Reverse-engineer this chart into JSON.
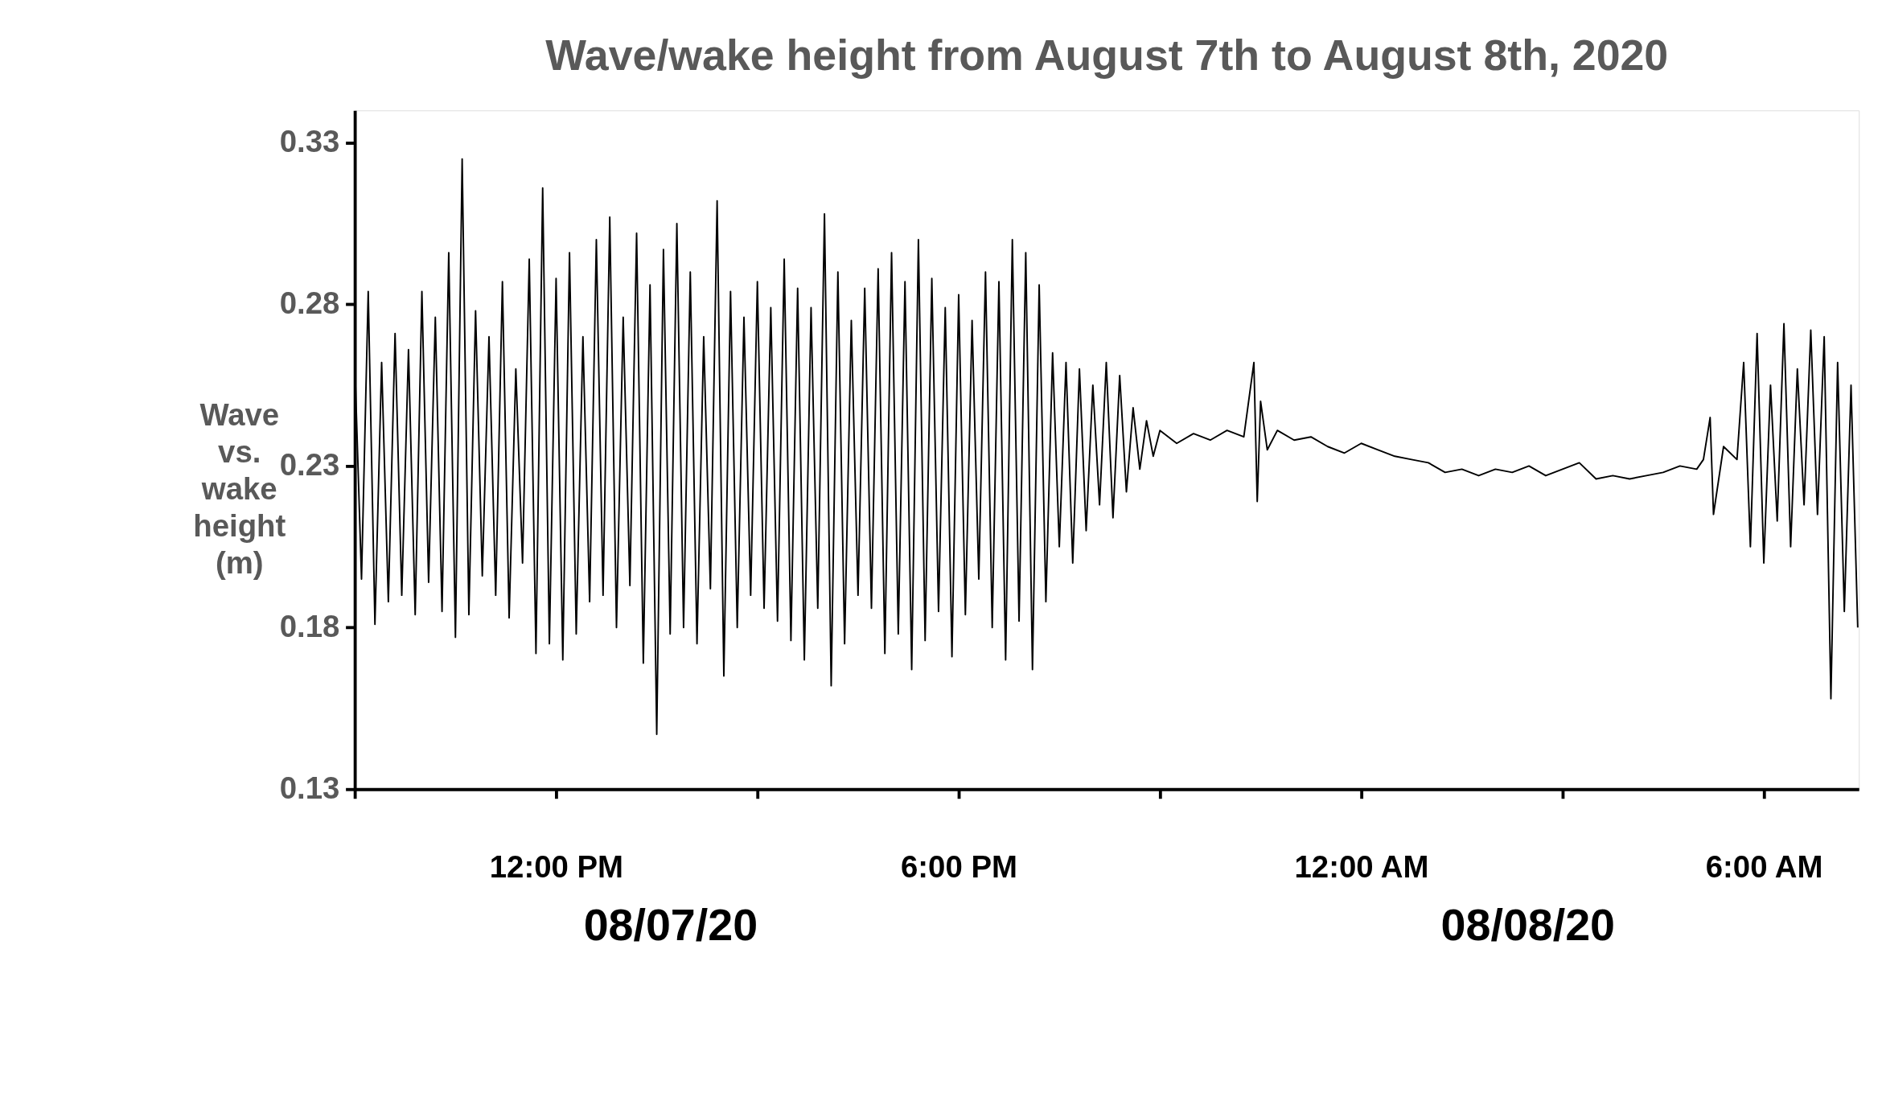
{
  "chart_data": {
    "type": "line",
    "title": "Wave/wake height from August 7th to August 8th, 2020",
    "ylabel": "Wave vs. wake height (m)",
    "annotations": [
      "08/07/20",
      "08/08/20"
    ],
    "x": [
      "2020-08-07T09:00",
      "2020-08-07T09:06",
      "2020-08-07T09:12",
      "2020-08-07T09:18",
      "2020-08-07T09:24",
      "2020-08-07T09:30",
      "2020-08-07T09:36",
      "2020-08-07T09:42",
      "2020-08-07T09:48",
      "2020-08-07T09:54",
      "2020-08-07T10:00",
      "2020-08-07T10:06",
      "2020-08-07T10:12",
      "2020-08-07T10:18",
      "2020-08-07T10:24",
      "2020-08-07T10:30",
      "2020-08-07T10:36",
      "2020-08-07T10:42",
      "2020-08-07T10:48",
      "2020-08-07T10:54",
      "2020-08-07T11:00",
      "2020-08-07T11:06",
      "2020-08-07T11:12",
      "2020-08-07T11:18",
      "2020-08-07T11:24",
      "2020-08-07T11:30",
      "2020-08-07T11:36",
      "2020-08-07T11:42",
      "2020-08-07T11:48",
      "2020-08-07T11:54",
      "2020-08-07T12:00",
      "2020-08-07T12:06",
      "2020-08-07T12:12",
      "2020-08-07T12:18",
      "2020-08-07T12:24",
      "2020-08-07T12:30",
      "2020-08-07T12:36",
      "2020-08-07T12:42",
      "2020-08-07T12:48",
      "2020-08-07T12:54",
      "2020-08-07T13:00",
      "2020-08-07T13:06",
      "2020-08-07T13:12",
      "2020-08-07T13:18",
      "2020-08-07T13:24",
      "2020-08-07T13:30",
      "2020-08-07T13:36",
      "2020-08-07T13:42",
      "2020-08-07T13:48",
      "2020-08-07T13:54",
      "2020-08-07T14:00",
      "2020-08-07T14:06",
      "2020-08-07T14:12",
      "2020-08-07T14:18",
      "2020-08-07T14:24",
      "2020-08-07T14:30",
      "2020-08-07T14:36",
      "2020-08-07T14:42",
      "2020-08-07T14:48",
      "2020-08-07T14:54",
      "2020-08-07T15:00",
      "2020-08-07T15:06",
      "2020-08-07T15:12",
      "2020-08-07T15:18",
      "2020-08-07T15:24",
      "2020-08-07T15:30",
      "2020-08-07T15:36",
      "2020-08-07T15:42",
      "2020-08-07T15:48",
      "2020-08-07T15:54",
      "2020-08-07T16:00",
      "2020-08-07T16:06",
      "2020-08-07T16:12",
      "2020-08-07T16:18",
      "2020-08-07T16:24",
      "2020-08-07T16:30",
      "2020-08-07T16:36",
      "2020-08-07T16:42",
      "2020-08-07T16:48",
      "2020-08-07T16:54",
      "2020-08-07T17:00",
      "2020-08-07T17:06",
      "2020-08-07T17:12",
      "2020-08-07T17:18",
      "2020-08-07T17:24",
      "2020-08-07T17:30",
      "2020-08-07T17:36",
      "2020-08-07T17:42",
      "2020-08-07T17:48",
      "2020-08-07T17:54",
      "2020-08-07T18:00",
      "2020-08-07T18:06",
      "2020-08-07T18:12",
      "2020-08-07T18:18",
      "2020-08-07T18:24",
      "2020-08-07T18:30",
      "2020-08-07T18:36",
      "2020-08-07T18:42",
      "2020-08-07T18:48",
      "2020-08-07T18:54",
      "2020-08-07T19:00",
      "2020-08-07T19:06",
      "2020-08-07T19:12",
      "2020-08-07T19:18",
      "2020-08-07T19:24",
      "2020-08-07T19:30",
      "2020-08-07T19:36",
      "2020-08-07T19:42",
      "2020-08-07T19:48",
      "2020-08-07T19:54",
      "2020-08-07T20:00",
      "2020-08-07T20:06",
      "2020-08-07T20:12",
      "2020-08-07T20:18",
      "2020-08-07T20:24",
      "2020-08-07T20:30",
      "2020-08-07T20:36",
      "2020-08-07T20:42",
      "2020-08-07T20:48",
      "2020-08-07T20:54",
      "2020-08-07T21:00",
      "2020-08-07T21:15",
      "2020-08-07T21:30",
      "2020-08-07T21:45",
      "2020-08-07T22:00",
      "2020-08-07T22:15",
      "2020-08-07T22:24",
      "2020-08-07T22:27",
      "2020-08-07T22:30",
      "2020-08-07T22:36",
      "2020-08-07T22:45",
      "2020-08-07T23:00",
      "2020-08-07T23:15",
      "2020-08-07T23:30",
      "2020-08-07T23:45",
      "2020-08-08T00:00",
      "2020-08-08T00:15",
      "2020-08-08T00:30",
      "2020-08-08T00:45",
      "2020-08-08T01:00",
      "2020-08-08T01:15",
      "2020-08-08T01:30",
      "2020-08-08T01:45",
      "2020-08-08T02:00",
      "2020-08-08T02:15",
      "2020-08-08T02:30",
      "2020-08-08T02:45",
      "2020-08-08T03:00",
      "2020-08-08T03:15",
      "2020-08-08T03:30",
      "2020-08-08T03:45",
      "2020-08-08T04:00",
      "2020-08-08T04:15",
      "2020-08-08T04:30",
      "2020-08-08T04:45",
      "2020-08-08T05:00",
      "2020-08-08T05:06",
      "2020-08-08T05:12",
      "2020-08-08T05:15",
      "2020-08-08T05:24",
      "2020-08-08T05:36",
      "2020-08-08T05:42",
      "2020-08-08T05:48",
      "2020-08-08T05:54",
      "2020-08-08T06:00",
      "2020-08-08T06:06",
      "2020-08-08T06:12",
      "2020-08-08T06:18",
      "2020-08-08T06:24",
      "2020-08-08T06:30",
      "2020-08-08T06:36",
      "2020-08-08T06:42",
      "2020-08-08T06:48",
      "2020-08-08T06:54",
      "2020-08-08T07:00",
      "2020-08-08T07:06",
      "2020-08-08T07:12",
      "2020-08-08T07:18",
      "2020-08-08T07:24"
    ],
    "series": [
      {
        "color": "#000000",
        "values": [
          0.262,
          0.195,
          0.284,
          0.181,
          0.262,
          0.188,
          0.271,
          0.19,
          0.266,
          0.184,
          0.284,
          0.194,
          0.276,
          0.185,
          0.296,
          0.177,
          0.325,
          0.184,
          0.278,
          0.196,
          0.27,
          0.19,
          0.287,
          0.183,
          0.26,
          0.2,
          0.294,
          0.172,
          0.316,
          0.175,
          0.288,
          0.17,
          0.296,
          0.178,
          0.27,
          0.188,
          0.3,
          0.19,
          0.307,
          0.18,
          0.276,
          0.193,
          0.302,
          0.169,
          0.286,
          0.147,
          0.297,
          0.178,
          0.305,
          0.18,
          0.29,
          0.175,
          0.27,
          0.192,
          0.312,
          0.165,
          0.284,
          0.18,
          0.276,
          0.19,
          0.287,
          0.186,
          0.279,
          0.182,
          0.294,
          0.176,
          0.285,
          0.17,
          0.279,
          0.186,
          0.308,
          0.162,
          0.29,
          0.175,
          0.275,
          0.19,
          0.285,
          0.186,
          0.291,
          0.172,
          0.296,
          0.178,
          0.287,
          0.167,
          0.3,
          0.176,
          0.288,
          0.185,
          0.279,
          0.171,
          0.283,
          0.184,
          0.275,
          0.195,
          0.29,
          0.18,
          0.287,
          0.17,
          0.3,
          0.182,
          0.296,
          0.167,
          0.286,
          0.188,
          0.265,
          0.205,
          0.262,
          0.2,
          0.26,
          0.21,
          0.255,
          0.218,
          0.262,
          0.214,
          0.258,
          0.222,
          0.248,
          0.229,
          0.244,
          0.233,
          0.241,
          0.237,
          0.24,
          0.238,
          0.241,
          0.239,
          0.262,
          0.219,
          0.25,
          0.235,
          0.241,
          0.238,
          0.239,
          0.236,
          0.234,
          0.237,
          0.235,
          0.233,
          0.232,
          0.231,
          0.228,
          0.229,
          0.227,
          0.229,
          0.228,
          0.23,
          0.227,
          0.229,
          0.231,
          0.226,
          0.227,
          0.226,
          0.227,
          0.228,
          0.23,
          0.229,
          0.232,
          0.245,
          0.215,
          0.236,
          0.232,
          0.262,
          0.205,
          0.271,
          0.2,
          0.255,
          0.213,
          0.274,
          0.205,
          0.26,
          0.218,
          0.272,
          0.215,
          0.27,
          0.158,
          0.262,
          0.185,
          0.255,
          0.18
        ]
      }
    ],
    "xlim": [
      "2020-08-07T09:00",
      "2020-08-08T07:25"
    ],
    "xticks": [
      {
        "value": "2020-08-07T09:00",
        "label": null
      },
      {
        "value": "2020-08-07T12:00",
        "label": "12:00 PM"
      },
      {
        "value": "2020-08-07T15:00",
        "label": null
      },
      {
        "value": "2020-08-07T18:00",
        "label": "6:00 PM"
      },
      {
        "value": "2020-08-07T21:00",
        "label": null
      },
      {
        "value": "2020-08-08T00:00",
        "label": "12:00 AM"
      },
      {
        "value": "2020-08-08T03:00",
        "label": null
      },
      {
        "value": "2020-08-08T06:00",
        "label": "6:00 AM"
      }
    ],
    "ylim": [
      0.13,
      0.34
    ],
    "yticks": [
      0.13,
      0.18,
      0.23,
      0.28,
      0.33
    ],
    "grid": false,
    "marker": "none",
    "line_style": "solid"
  }
}
